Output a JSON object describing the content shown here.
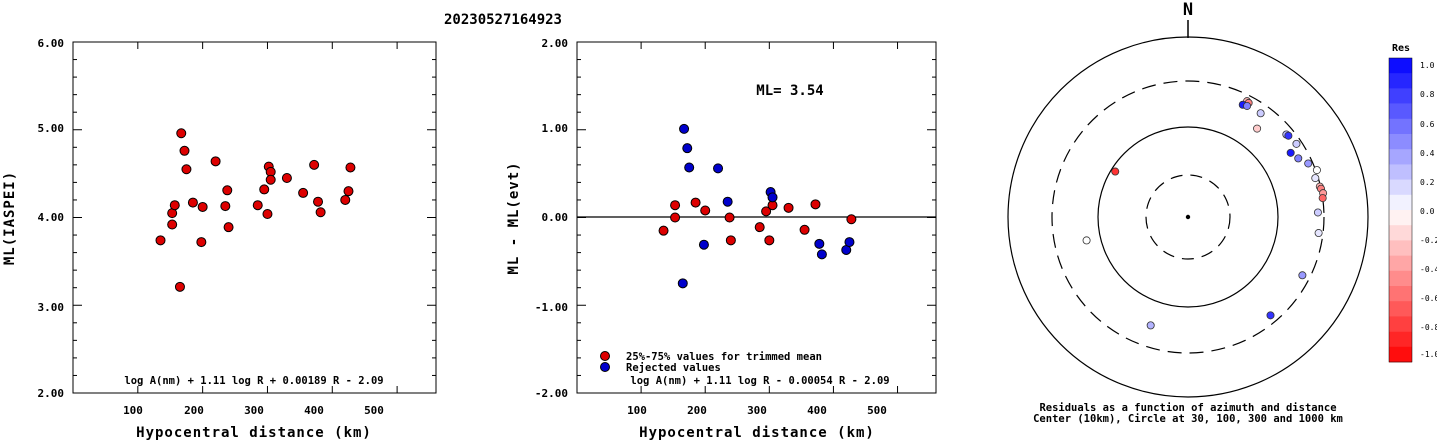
{
  "title": "20230527164923",
  "left_panel": {
    "ylabel": "ML(IASPEI)",
    "xlabel": "Hypocentral distance (km)",
    "formula": "log A(nm) + 1.11 log R + 0.00189 R - 2.09",
    "y_ticks": [
      "2.00",
      "3.00",
      "4.00",
      "5.00",
      "6.00"
    ],
    "x_ticks": [
      "100",
      "200",
      "300",
      "400",
      "500"
    ]
  },
  "mid_panel": {
    "ylabel": "ML - ML(evt)",
    "xlabel": "Hypocentral distance (km)",
    "formula": "log A(nm) + 1.11 log R - 0.00054 R - 2.09",
    "ml_text": "ML= 3.54",
    "legend_used": "25%-75% values for trimmed mean",
    "legend_rejected": "Rejected values",
    "y_ticks": [
      "-2.00",
      "-1.00",
      "0.00",
      "1.00",
      "2.00"
    ],
    "x_ticks": [
      "100",
      "200",
      "300",
      "400",
      "500"
    ]
  },
  "polar_panel": {
    "north": "N",
    "caption1": "Residuals as a function of azimuth and distance",
    "caption2": "Center (10km), Circle at 30, 100, 300 and 1000 km"
  },
  "colorbar": {
    "title": "Res",
    "labels": [
      "1.0",
      "0.8",
      "0.6",
      "0.4",
      "0.2",
      "0.0",
      "-0.2",
      "-0.4",
      "-0.6",
      "-0.8",
      "-1.0"
    ]
  },
  "colors": {
    "used": "#dd0000",
    "rejected": "#0000cc"
  },
  "chart_data": [
    {
      "type": "scatter",
      "title": "20230527164923",
      "xlabel": "Hypocentral distance (km)",
      "ylabel": "ML(IASPEI)",
      "xlim": [
        0,
        560
      ],
      "ylim": [
        2.0,
        6.0
      ],
      "series": [
        {
          "status": "used",
          "points": [
            [
              135,
              3.74
            ],
            [
              153,
              4.05
            ],
            [
              153,
              3.92
            ],
            [
              157,
              4.14
            ],
            [
              165,
              3.21
            ],
            [
              167,
              4.96
            ],
            [
              172,
              4.76
            ],
            [
              175,
              4.55
            ],
            [
              185,
              4.17
            ],
            [
              198,
              3.72
            ],
            [
              200,
              4.12
            ],
            [
              220,
              4.64
            ],
            [
              235,
              4.13
            ],
            [
              238,
              4.31
            ],
            [
              240,
              3.89
            ],
            [
              285,
              4.14
            ],
            [
              295,
              4.32
            ],
            [
              300,
              4.04
            ],
            [
              302,
              4.58
            ],
            [
              305,
              4.52
            ],
            [
              305,
              4.43
            ],
            [
              330,
              4.45
            ],
            [
              355,
              4.28
            ],
            [
              372,
              4.6
            ],
            [
              378,
              4.18
            ],
            [
              382,
              4.06
            ],
            [
              420,
              4.2
            ],
            [
              425,
              4.3
            ],
            [
              428,
              4.57
            ]
          ]
        }
      ]
    },
    {
      "type": "scatter",
      "xlabel": "Hypocentral distance (km)",
      "ylabel": "ML - ML(evt)",
      "xlim": [
        0,
        560
      ],
      "ylim": [
        -2.0,
        2.0
      ],
      "annotations": [
        "ML= 3.54"
      ],
      "series": [
        {
          "name": "25%-75% values for trimmed mean",
          "points": [
            [
              135,
              -0.15
            ],
            [
              153,
              0.14
            ],
            [
              153,
              0.0
            ],
            [
              185,
              0.17
            ],
            [
              200,
              0.08
            ],
            [
              238,
              0.0
            ],
            [
              240,
              -0.26
            ],
            [
              285,
              -0.11
            ],
            [
              295,
              0.07
            ],
            [
              300,
              -0.26
            ],
            [
              305,
              0.14
            ],
            [
              330,
              0.11
            ],
            [
              355,
              -0.14
            ],
            [
              372,
              0.15
            ],
            [
              428,
              -0.02
            ]
          ]
        },
        {
          "name": "Rejected values",
          "points": [
            [
              165,
              -0.75
            ],
            [
              167,
              1.01
            ],
            [
              172,
              0.79
            ],
            [
              175,
              0.57
            ],
            [
              198,
              -0.31
            ],
            [
              220,
              0.56
            ],
            [
              235,
              0.18
            ],
            [
              302,
              0.29
            ],
            [
              305,
              0.23
            ],
            [
              378,
              -0.3
            ],
            [
              382,
              -0.42
            ],
            [
              420,
              -0.37
            ],
            [
              425,
              -0.28
            ]
          ]
        }
      ]
    },
    {
      "type": "scatter",
      "title": "Residuals as a function of azimuth and distance",
      "note": "Center (10km), Circle at 30, 100, 300 and 1000 km",
      "coordinate_system": "polar, azimuth in degrees from North, distance in km on a log scale",
      "points": [
        {
          "az": 27,
          "dist": 260,
          "res": -0.3
        },
        {
          "az": 28,
          "dist": 255,
          "res": -0.5
        },
        {
          "az": 26,
          "dist": 230,
          "res": 0.9
        },
        {
          "az": 28,
          "dist": 235,
          "res": 0.5
        },
        {
          "az": 35,
          "dist": 240,
          "res": 0.2
        },
        {
          "az": 38,
          "dist": 170,
          "res": -0.2
        },
        {
          "az": 50,
          "dist": 250,
          "res": 0.3
        },
        {
          "az": 51,
          "dist": 255,
          "res": 0.8
        },
        {
          "az": 56,
          "dist": 265,
          "res": 0.2
        },
        {
          "az": 58,
          "dist": 210,
          "res": 0.9
        },
        {
          "az": 62,
          "dist": 230,
          "res": 0.5
        },
        {
          "az": 66,
          "dist": 270,
          "res": 0.4
        },
        {
          "az": 70,
          "dist": 310,
          "res": 0.0
        },
        {
          "az": 73,
          "dist": 280,
          "res": 0.1
        },
        {
          "az": 77,
          "dist": 295,
          "res": -0.3
        },
        {
          "az": 78,
          "dist": 300,
          "res": -0.5
        },
        {
          "az": 80,
          "dist": 310,
          "res": -0.4
        },
        {
          "az": 82,
          "dist": 300,
          "res": -0.6
        },
        {
          "az": 88,
          "dist": 260,
          "res": 0.2
        },
        {
          "az": 97,
          "dist": 270,
          "res": 0.1
        },
        {
          "az": 117,
          "dist": 250,
          "res": 0.4
        },
        {
          "az": 140,
          "dist": 250,
          "res": 0.8
        },
        {
          "az": 199,
          "dist": 180,
          "res": 0.3
        },
        {
          "az": 257,
          "dist": 140,
          "res": 0.0
        },
        {
          "az": 302,
          "dist": 90,
          "res": -0.8
        }
      ]
    }
  ]
}
